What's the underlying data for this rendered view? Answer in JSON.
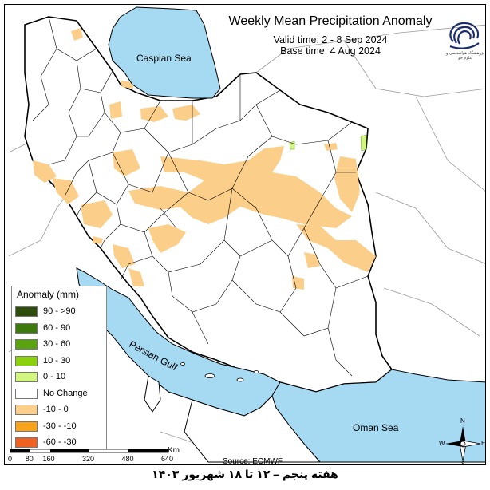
{
  "title": "Weekly Mean Precipitation Anomaly",
  "valid_time": "Valid time: 2 - 8 Sep 2024",
  "base_time": "Base time: 4 Aug 2024",
  "logo_text": "پژوهشگاه هواشناسی و علوم جو",
  "legend": {
    "title": "Anomaly (mm)",
    "items": [
      {
        "label": "90 - >90",
        "color": "#2e4d0c"
      },
      {
        "label": "60 - 90",
        "color": "#3c7a0e"
      },
      {
        "label": "30 - 60",
        "color": "#58a30e"
      },
      {
        "label": "10 - 30",
        "color": "#8bd10f"
      },
      {
        "label": "0 - 10",
        "color": "#d3f582"
      },
      {
        "label": "No Change",
        "color": "#ffffff"
      },
      {
        "label": "-10 - 0",
        "color": "#fbce89"
      },
      {
        "label": "-30 - -10",
        "color": "#f9a51c"
      },
      {
        "label": "-60 - -30",
        "color": "#f0601e"
      }
    ]
  },
  "seas": {
    "caspian": "Caspian Sea",
    "persian": "Persian Gulf",
    "oman": "Oman Sea"
  },
  "scale": {
    "unit": "Km",
    "ticks": [
      "0",
      "80",
      "160",
      "320",
      "480",
      "640"
    ]
  },
  "compass": {
    "n": "N",
    "s": "S",
    "e": "E",
    "w": "W"
  },
  "source": "Source: ECMWF",
  "footer": "هفته پنجم – ۱۲ تا ۱۸ شهریور ۱۴۰۳",
  "colors": {
    "sea": "#a6d9f2",
    "dry": "#fbce89",
    "wet": "#d3f582"
  }
}
